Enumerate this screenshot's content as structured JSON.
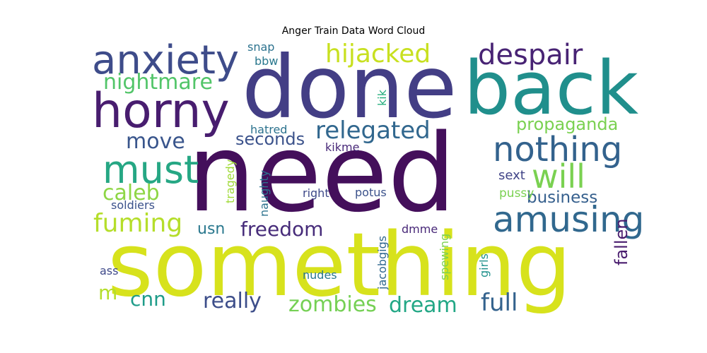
{
  "chart_data": {
    "type": "wordcloud",
    "title": "Anger Train Data Word Cloud",
    "colormap": "viridis",
    "words": [
      {
        "text": "need",
        "color": "#440f5b"
      },
      {
        "text": "something",
        "color": "#d7e21c"
      },
      {
        "text": "done",
        "color": "#433e85"
      },
      {
        "text": "back",
        "color": "#208f8c"
      },
      {
        "text": "horny",
        "color": "#481d6f"
      },
      {
        "text": "anxiety",
        "color": "#3e4c8a"
      },
      {
        "text": "nothing",
        "color": "#33628d"
      },
      {
        "text": "amusing",
        "color": "#31688e"
      },
      {
        "text": "must",
        "color": "#26a784"
      },
      {
        "text": "despair",
        "color": "#482374"
      },
      {
        "text": "will",
        "color": "#7ad151"
      },
      {
        "text": "hijacked",
        "color": "#c8e020"
      },
      {
        "text": "relegated",
        "color": "#31678e"
      },
      {
        "text": "nightmare",
        "color": "#52c569"
      },
      {
        "text": "fuming",
        "color": "#b5de2b"
      },
      {
        "text": "move",
        "color": "#39558c"
      },
      {
        "text": "caleb",
        "color": "#8ed645"
      },
      {
        "text": "zombies",
        "color": "#75d054"
      },
      {
        "text": "full",
        "color": "#33628d"
      },
      {
        "text": "really",
        "color": "#3d4e8a"
      },
      {
        "text": "dream",
        "color": "#22a785"
      },
      {
        "text": "freedom",
        "color": "#472c7a"
      },
      {
        "text": "cnn",
        "color": "#1e9c89"
      },
      {
        "text": "propaganda",
        "color": "#7ad151"
      },
      {
        "text": "business",
        "color": "#355f8d"
      },
      {
        "text": "seconds",
        "color": "#3b528b"
      },
      {
        "text": "fallen",
        "color": "#481b6d"
      },
      {
        "text": "usn",
        "color": "#2a788e"
      },
      {
        "text": "m",
        "color": "#b5de2b"
      },
      {
        "text": "sext",
        "color": "#414487"
      },
      {
        "text": "pussy",
        "color": "#7ad151"
      },
      {
        "text": "soldiers",
        "color": "#3b528b"
      },
      {
        "text": "hatred",
        "color": "#2c728e"
      },
      {
        "text": "kikme",
        "color": "#482878"
      },
      {
        "text": "right",
        "color": "#3e4989"
      },
      {
        "text": "potus",
        "color": "#3b528b"
      },
      {
        "text": "nudes",
        "color": "#2a788e"
      },
      {
        "text": "ass",
        "color": "#3e4989"
      },
      {
        "text": "snap",
        "color": "#2c728e"
      },
      {
        "text": "bbw",
        "color": "#2a788e"
      },
      {
        "text": "kik",
        "color": "#29af7f"
      },
      {
        "text": "dmme",
        "color": "#482878"
      },
      {
        "text": "tragedy",
        "color": "#a0da39"
      },
      {
        "text": "naughty",
        "color": "#2c728e"
      },
      {
        "text": "jacobgigs",
        "color": "#31688e"
      },
      {
        "text": "spewing",
        "color": "#7ad151"
      },
      {
        "text": "girls",
        "color": "#21918c"
      }
    ]
  }
}
